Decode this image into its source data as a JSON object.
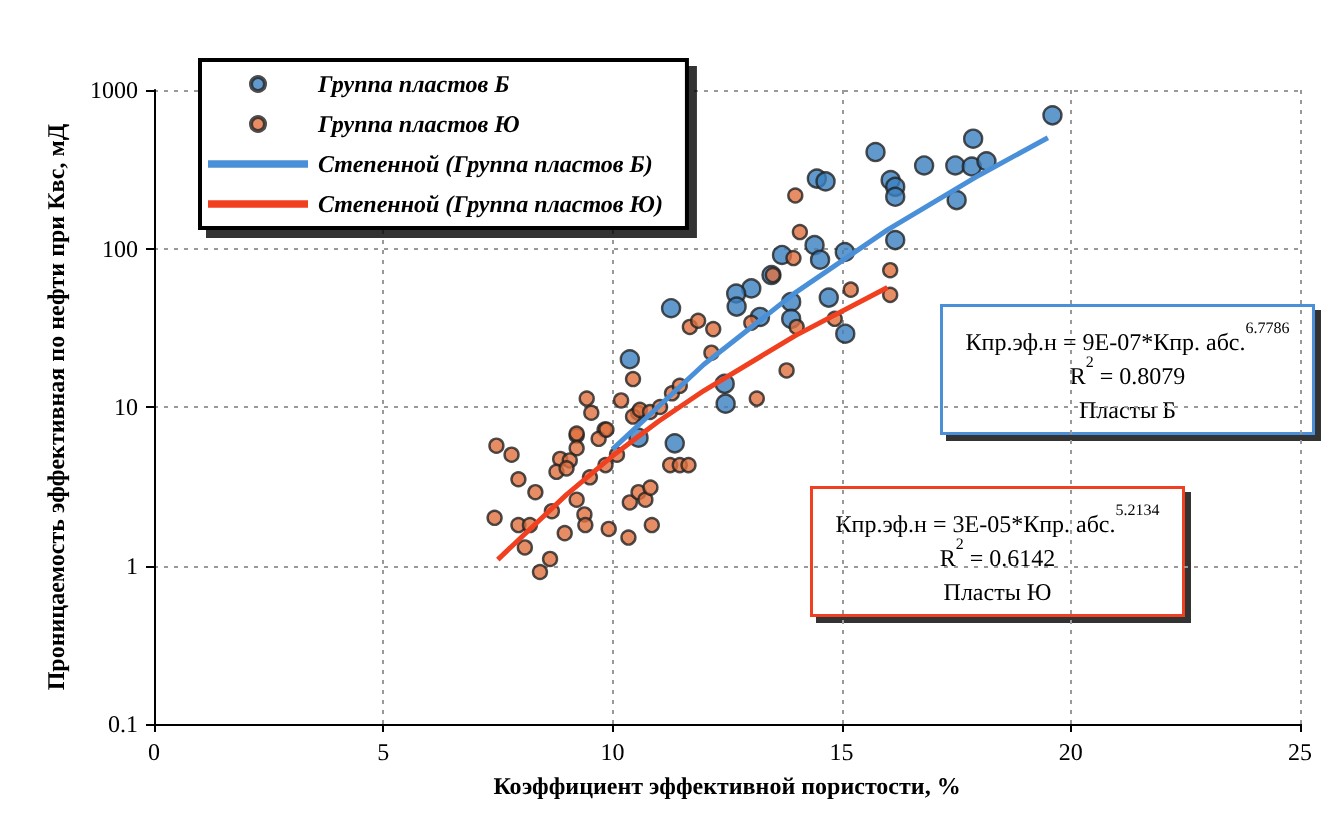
{
  "chart_data": {
    "type": "scatter",
    "xlabel": "Коэффициент эффективной пористости, %",
    "ylabel": "Проницаемость эффективная по нефти при Квс, мД",
    "xlim": [
      0,
      25
    ],
    "xticks": [
      0,
      5,
      10,
      15,
      20,
      25
    ],
    "ylim": [
      0.1,
      1000
    ],
    "yticks": [
      0.1,
      1,
      10,
      100,
      1000
    ],
    "log": "y",
    "grid": true,
    "legend": "top left",
    "annotations": [
      "Кпр.эф.н = 9E-07*Кпр. абс.$^{6.7786}$\nR$^{2}$ = 0.8079\nПласты Б",
      "Кпр.эф.н = 3E-05*Кпр. абс.$^{5.2134}$\nR$^{2}$ = 0.6142\nПласты Ю"
    ],
    "series": [
      {
        "name": "Группа пластов Б",
        "marker": "circle",
        "color": "#3a7fc0",
        "x": [
          19.6,
          15.74,
          16.07,
          16.17,
          16.17,
          16.8,
          17.48,
          17.87,
          17.84,
          18.16,
          17.51,
          16.17,
          15.07,
          15.08,
          14.46,
          14.65,
          14.41,
          13.7,
          14.53,
          13.47,
          13.03,
          12.7,
          12.71,
          13.22,
          13.9,
          13.9,
          14.72,
          11.28,
          12.45,
          10.38,
          10.57,
          11.36,
          12.47
        ],
        "values": [
          692,
          406,
          270,
          245,
          212,
          334,
          334,
          493,
          329,
          355,
          202,
          113,
          95,
          29,
          276,
          265,
          105,
          91,
          85,
          68,
          56,
          52,
          43,
          37,
          46,
          36,
          49,
          42,
          14,
          20,
          6.4,
          5.9,
          10.5
        ]
      },
      {
        "name": "Группа пластов Ю",
        "marker": "circle",
        "color": "#e07040",
        "x": [
          16.06,
          16.06,
          15.2,
          13.99,
          14.09,
          13.95,
          13.5,
          13.03,
          14.02,
          14.85,
          11.69,
          11.87,
          12.2,
          12.16,
          13.8,
          13.15,
          10.45,
          9.44,
          9.54,
          10.19,
          11.3,
          11.47,
          10.56,
          9.83,
          9.22,
          7.47,
          7.8,
          7.95,
          8.32,
          7.43,
          7.95,
          8.2,
          8.09,
          8.64,
          8.42,
          8.68,
          8.96,
          9.22,
          9.39,
          9.41,
          9.22,
          9.22,
          8.86,
          9.07,
          8.78,
          9.0,
          9.51,
          9.85,
          10.1,
          9.7,
          9.87,
          9.92,
          10.35,
          10.86,
          10.38,
          10.57,
          10.72,
          10.83,
          10.45,
          10.6,
          10.82,
          11.04,
          11.26,
          11.47,
          11.66
        ],
        "values": [
          73,
          51,
          55,
          216,
          127,
          87,
          68,
          34,
          32,
          36,
          32,
          35,
          31,
          22,
          17,
          11.3,
          15,
          11.3,
          9.2,
          11,
          12.2,
          13.6,
          9.2,
          7.2,
          6.6,
          5.7,
          5.0,
          3.5,
          2.9,
          2.0,
          1.8,
          1.8,
          1.3,
          1.1,
          0.91,
          2.2,
          1.6,
          2.6,
          2.1,
          1.8,
          6.8,
          5.5,
          4.7,
          4.6,
          3.9,
          4.1,
          3.6,
          4.3,
          5.0,
          6.3,
          7.2,
          1.7,
          1.5,
          1.8,
          2.5,
          2.9,
          2.6,
          3.1,
          8.7,
          9.6,
          9.3,
          10,
          4.3,
          4.3,
          4.3
        ]
      },
      {
        "name": "Степенной (Группа пластов Б)",
        "type": "line",
        "marker": "none",
        "color": "#4a90d9",
        "x": [
          10,
          12,
          14,
          16,
          18,
          19.5
        ],
        "values": [
          5.4,
          18.6,
          52.9,
          131,
          290,
          500
        ]
      },
      {
        "name": "Степенной (Группа пластов Ю)",
        "type": "line",
        "marker": "none",
        "color": "#f04020",
        "x": [
          7.5,
          9,
          10,
          11,
          12,
          14,
          16
        ],
        "values": [
          1.09,
          2.8,
          4.9,
          8.1,
          12.7,
          28.3,
          56.8
        ]
      }
    ]
  }
}
